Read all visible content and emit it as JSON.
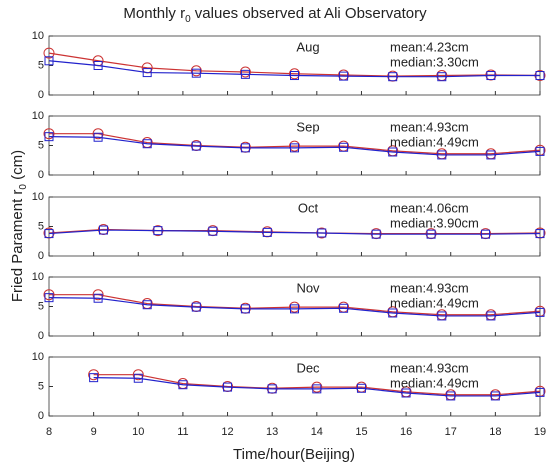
{
  "title": [
    "Monthly r",
    "0",
    " values observed at Ali Observatory"
  ],
  "xlabel": "Time/hour(Beijing)",
  "ylabel": [
    "Fried Parament r",
    "0",
    " (cm)"
  ],
  "chart_data": [
    {
      "type": "line",
      "label": "Aug",
      "mean_label": "mean:4.23cm",
      "median_label": "median:3.30cm",
      "x": [
        8,
        9.1,
        10.2,
        11.3,
        12.4,
        13.5,
        14.6,
        15.7,
        16.8,
        17.9,
        19
      ],
      "series": [
        {
          "name": "mean",
          "color": "#cc3333",
          "marker": "circle",
          "values": [
            7.1,
            5.8,
            4.6,
            4.1,
            3.9,
            3.6,
            3.4,
            3.2,
            3.3,
            3.4,
            3.3
          ]
        },
        {
          "name": "median",
          "color": "#2222cc",
          "marker": "square",
          "values": [
            5.8,
            5.0,
            3.8,
            3.7,
            3.5,
            3.3,
            3.2,
            3.1,
            3.1,
            3.3,
            3.3
          ]
        }
      ],
      "xlim": [
        8,
        19
      ],
      "xticks": [
        8,
        9,
        10,
        11,
        12,
        13,
        14,
        15,
        16,
        17,
        18,
        19
      ],
      "xtick_labels": false,
      "ylim": [
        0,
        10
      ],
      "yticks": [
        0,
        5,
        10
      ]
    },
    {
      "type": "line",
      "label": "Sep",
      "mean_label": "mean:4.93cm",
      "median_label": "median:4.49cm",
      "x": [
        8,
        9.1,
        10.2,
        11.3,
        12.4,
        13.5,
        14.6,
        15.7,
        16.8,
        17.9,
        19
      ],
      "series": [
        {
          "name": "mean",
          "color": "#cc3333",
          "marker": "circle",
          "values": [
            7.0,
            7.0,
            5.5,
            5.0,
            4.7,
            4.9,
            4.9,
            4.1,
            3.6,
            3.6,
            4.2
          ]
        },
        {
          "name": "median",
          "color": "#2222cc",
          "marker": "square",
          "values": [
            6.5,
            6.4,
            5.3,
            4.9,
            4.6,
            4.6,
            4.7,
            3.9,
            3.4,
            3.4,
            4.0
          ]
        }
      ],
      "xlim": [
        8,
        19
      ],
      "xticks": [
        8,
        9,
        10,
        11,
        12,
        13,
        14,
        15,
        16,
        17,
        18,
        19
      ],
      "xtick_labels": false,
      "ylim": [
        0,
        10
      ],
      "yticks": [
        0,
        5,
        10
      ]
    },
    {
      "type": "line",
      "label": "Oct",
      "mean_label": "mean:4.06cm",
      "median_label": "median:3.90cm",
      "x": [
        8,
        9.22,
        10.44,
        11.67,
        12.89,
        14.11,
        15.33,
        16.56,
        17.78,
        19
      ],
      "series": [
        {
          "name": "mean",
          "color": "#cc3333",
          "marker": "circle",
          "values": [
            3.9,
            4.5,
            4.3,
            4.3,
            4.1,
            3.9,
            3.8,
            3.8,
            3.8,
            3.9
          ]
        },
        {
          "name": "median",
          "color": "#2222cc",
          "marker": "square",
          "values": [
            3.8,
            4.4,
            4.3,
            4.2,
            4.0,
            3.9,
            3.7,
            3.7,
            3.7,
            3.8
          ]
        }
      ],
      "xlim": [
        8,
        19
      ],
      "xticks": [
        8,
        9,
        10,
        11,
        12,
        13,
        14,
        15,
        16,
        17,
        18,
        19
      ],
      "xtick_labels": false,
      "ylim": [
        0,
        10
      ],
      "yticks": [
        0,
        5,
        10
      ]
    },
    {
      "type": "line",
      "label": "Nov",
      "mean_label": "mean:4.93cm",
      "median_label": "median:4.49cm",
      "x": [
        8,
        9.1,
        10.2,
        11.3,
        12.4,
        13.5,
        14.6,
        15.7,
        16.8,
        17.9,
        19
      ],
      "series": [
        {
          "name": "mean",
          "color": "#cc3333",
          "marker": "circle",
          "values": [
            7.0,
            7.0,
            5.5,
            5.0,
            4.7,
            4.9,
            4.9,
            4.1,
            3.6,
            3.6,
            4.2
          ]
        },
        {
          "name": "median",
          "color": "#2222cc",
          "marker": "square",
          "values": [
            6.5,
            6.4,
            5.3,
            4.9,
            4.6,
            4.6,
            4.7,
            3.9,
            3.4,
            3.4,
            4.0
          ]
        }
      ],
      "xlim": [
        8,
        19
      ],
      "xticks": [
        8,
        9,
        10,
        11,
        12,
        13,
        14,
        15,
        16,
        17,
        18,
        19
      ],
      "xtick_labels": false,
      "ylim": [
        0,
        10
      ],
      "yticks": [
        0,
        5,
        10
      ]
    },
    {
      "type": "line",
      "label": "Dec",
      "mean_label": "mean:4.93cm",
      "median_label": "median:4.49cm",
      "x": [
        9,
        10,
        11,
        12,
        13,
        14,
        15,
        16,
        17,
        18,
        19
      ],
      "series": [
        {
          "name": "mean",
          "color": "#cc3333",
          "marker": "circle",
          "values": [
            7.0,
            7.0,
            5.5,
            5.0,
            4.7,
            4.9,
            4.9,
            4.1,
            3.6,
            3.6,
            4.2
          ]
        },
        {
          "name": "median",
          "color": "#2222cc",
          "marker": "square",
          "values": [
            6.5,
            6.4,
            5.3,
            4.9,
            4.6,
            4.6,
            4.7,
            3.9,
            3.4,
            3.4,
            4.0
          ]
        }
      ],
      "xlim": [
        8,
        19
      ],
      "xticks": [
        8,
        9,
        10,
        11,
        12,
        13,
        14,
        15,
        16,
        17,
        18,
        19
      ],
      "xtick_labels": true,
      "ylim": [
        0,
        10
      ],
      "yticks": [
        0,
        5,
        10
      ]
    }
  ]
}
